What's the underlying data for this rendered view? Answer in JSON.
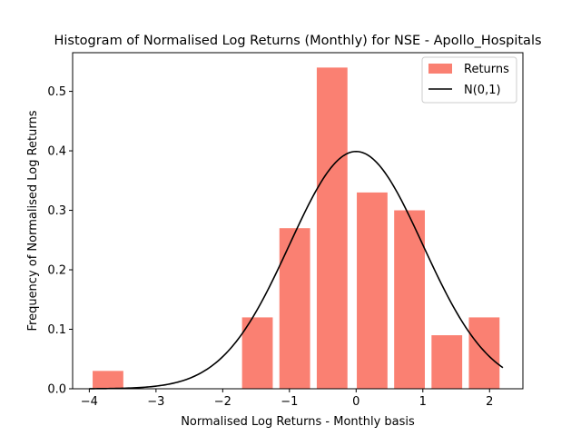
{
  "chart_data": {
    "type": "bar",
    "title": "Histogram of Normalised Log Returns (Monthly) for NSE - Apollo_Hospitals",
    "xlabel": "Normalised Log Returns - Monthly basis",
    "ylabel": "Frequency of Normalised Log Returns",
    "xlim": [
      -4.25,
      2.5
    ],
    "ylim": [
      0,
      0.565
    ],
    "xticks": [
      -4,
      -3,
      -2,
      -1,
      0,
      1,
      2
    ],
    "yticks": [
      0.0,
      0.1,
      0.2,
      0.3,
      0.4,
      0.5
    ],
    "xtick_labels": [
      "−4",
      "−3",
      "−2",
      "−1",
      "0",
      "1",
      "2"
    ],
    "ytick_labels": [
      "0.0",
      "0.1",
      "0.2",
      "0.3",
      "0.4",
      "0.5"
    ],
    "grid": false,
    "legend_position": "top-right",
    "bar_width": 0.46,
    "series": [
      {
        "name": "Returns",
        "kind": "bar",
        "color": "#fa8072",
        "x": [
          -3.72,
          -1.48,
          -0.92,
          -0.36,
          0.24,
          0.8,
          1.36,
          1.92
        ],
        "values": [
          0.03,
          0.12,
          0.27,
          0.54,
          0.33,
          0.3,
          0.09,
          0.12
        ]
      },
      {
        "name": "N(0,1)",
        "kind": "line",
        "color": "#000000",
        "function": "standard-normal-pdf",
        "x_range": [
          -4.0,
          2.2
        ]
      }
    ]
  }
}
